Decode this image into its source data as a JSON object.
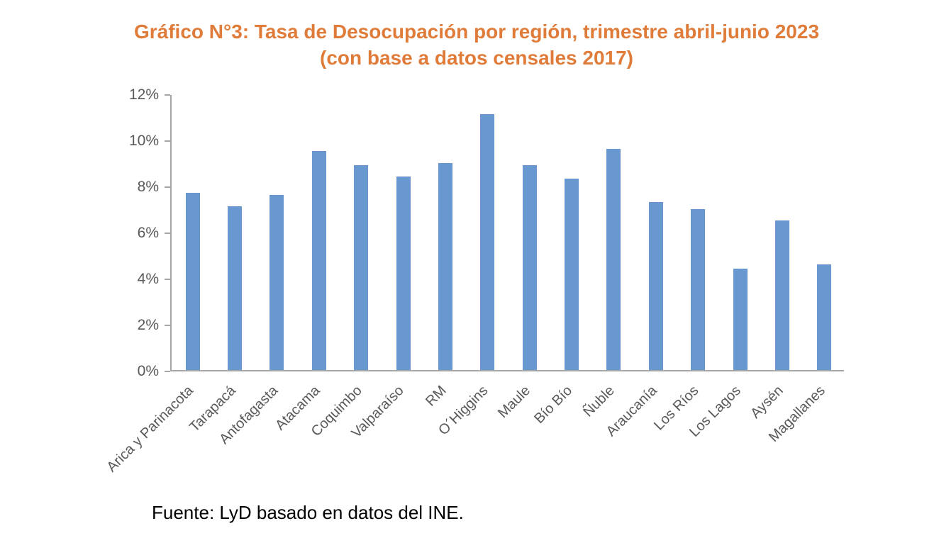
{
  "title": {
    "line1": "Gráfico N°3: Tasa de Desocupación por región, trimestre abril-junio 2023",
    "line2": "(con base a datos censales 2017)"
  },
  "source_note": "Fuente: LyD basado en datos del INE.",
  "colors": {
    "title": "#E07C3A",
    "bar": "#6997D0",
    "axis": "#A6A6A6",
    "tick_label": "#595959",
    "source_text": "#000000"
  },
  "chart_data": {
    "type": "bar",
    "title": "Gráfico N°3: Tasa de Desocupación por región, trimestre abril-junio 2023 (con base a datos censales 2017)",
    "categories": [
      "Arica y Parinacota",
      "Tarapacá",
      "Antofagasta",
      "Atacama",
      "Coquimbo",
      "Valparaíso",
      "RM",
      "O´Higgins",
      "Maule",
      "Bío Bío",
      "Ñuble",
      "Araucanía",
      "Los Ríos",
      "Los Lagos",
      "Aysén",
      "Magallanes"
    ],
    "values": [
      7.7,
      7.1,
      7.6,
      9.5,
      8.9,
      8.4,
      9.0,
      11.1,
      8.9,
      8.3,
      9.6,
      7.3,
      7.0,
      4.4,
      6.5,
      4.6
    ],
    "value_unit": "%",
    "xlabel": "",
    "ylabel": "",
    "ylim": [
      0,
      12
    ],
    "ytick_values": [
      0,
      2,
      4,
      6,
      8,
      10,
      12
    ],
    "ytick_labels": [
      "0%",
      "2%",
      "4%",
      "6%",
      "8%",
      "10%",
      "12%"
    ],
    "grid": false,
    "legend": "none",
    "x_label_rotation_deg": 45
  }
}
